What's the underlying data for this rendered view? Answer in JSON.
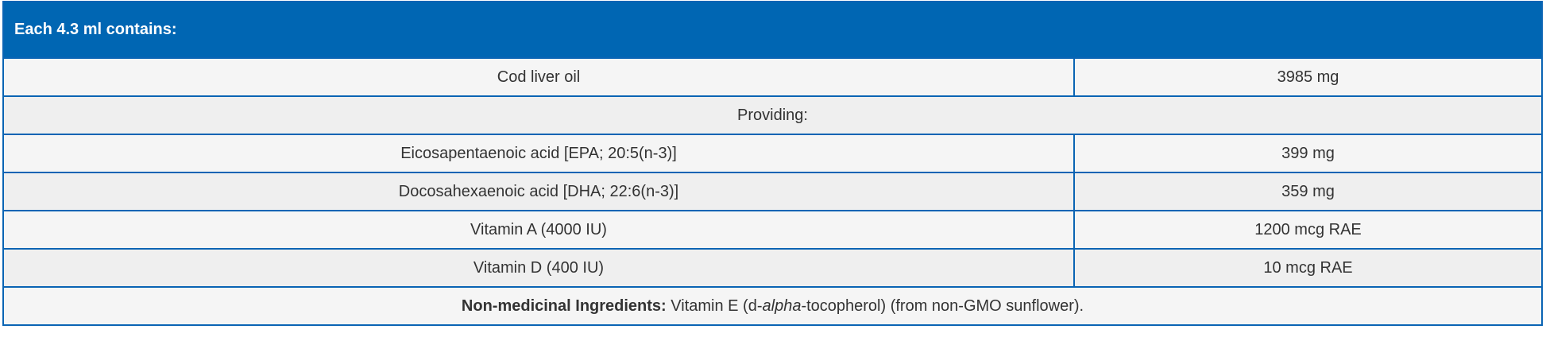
{
  "table": {
    "header": "Each 4.3 ml contains:",
    "rows": [
      {
        "name": "Cod liver oil",
        "value": "3985 mg"
      },
      {
        "section": "Providing:"
      },
      {
        "name": "Eicosapentaenoic acid [EPA; 20:5(n-3)]",
        "value": "399 mg"
      },
      {
        "name": "Docosahexaenoic acid [DHA; 22:6(n-3)]",
        "value": "359 mg"
      },
      {
        "name": "Vitamin A (4000 IU)",
        "value": "1200 mcg RAE"
      },
      {
        "name": "Vitamin D (400 IU)",
        "value": "10 mcg RAE"
      }
    ],
    "footnote": {
      "label": "Non-medicinal Ingredients:",
      "text_before": " Vitamin E (d-",
      "text_italic": "alpha",
      "text_after": "-tocopherol) (from non-GMO sunflower)."
    }
  },
  "colors": {
    "header_bg": "#0066b3",
    "border": "#0a64b4",
    "row_light": "#f5f5f5",
    "row_dark": "#efefef"
  }
}
